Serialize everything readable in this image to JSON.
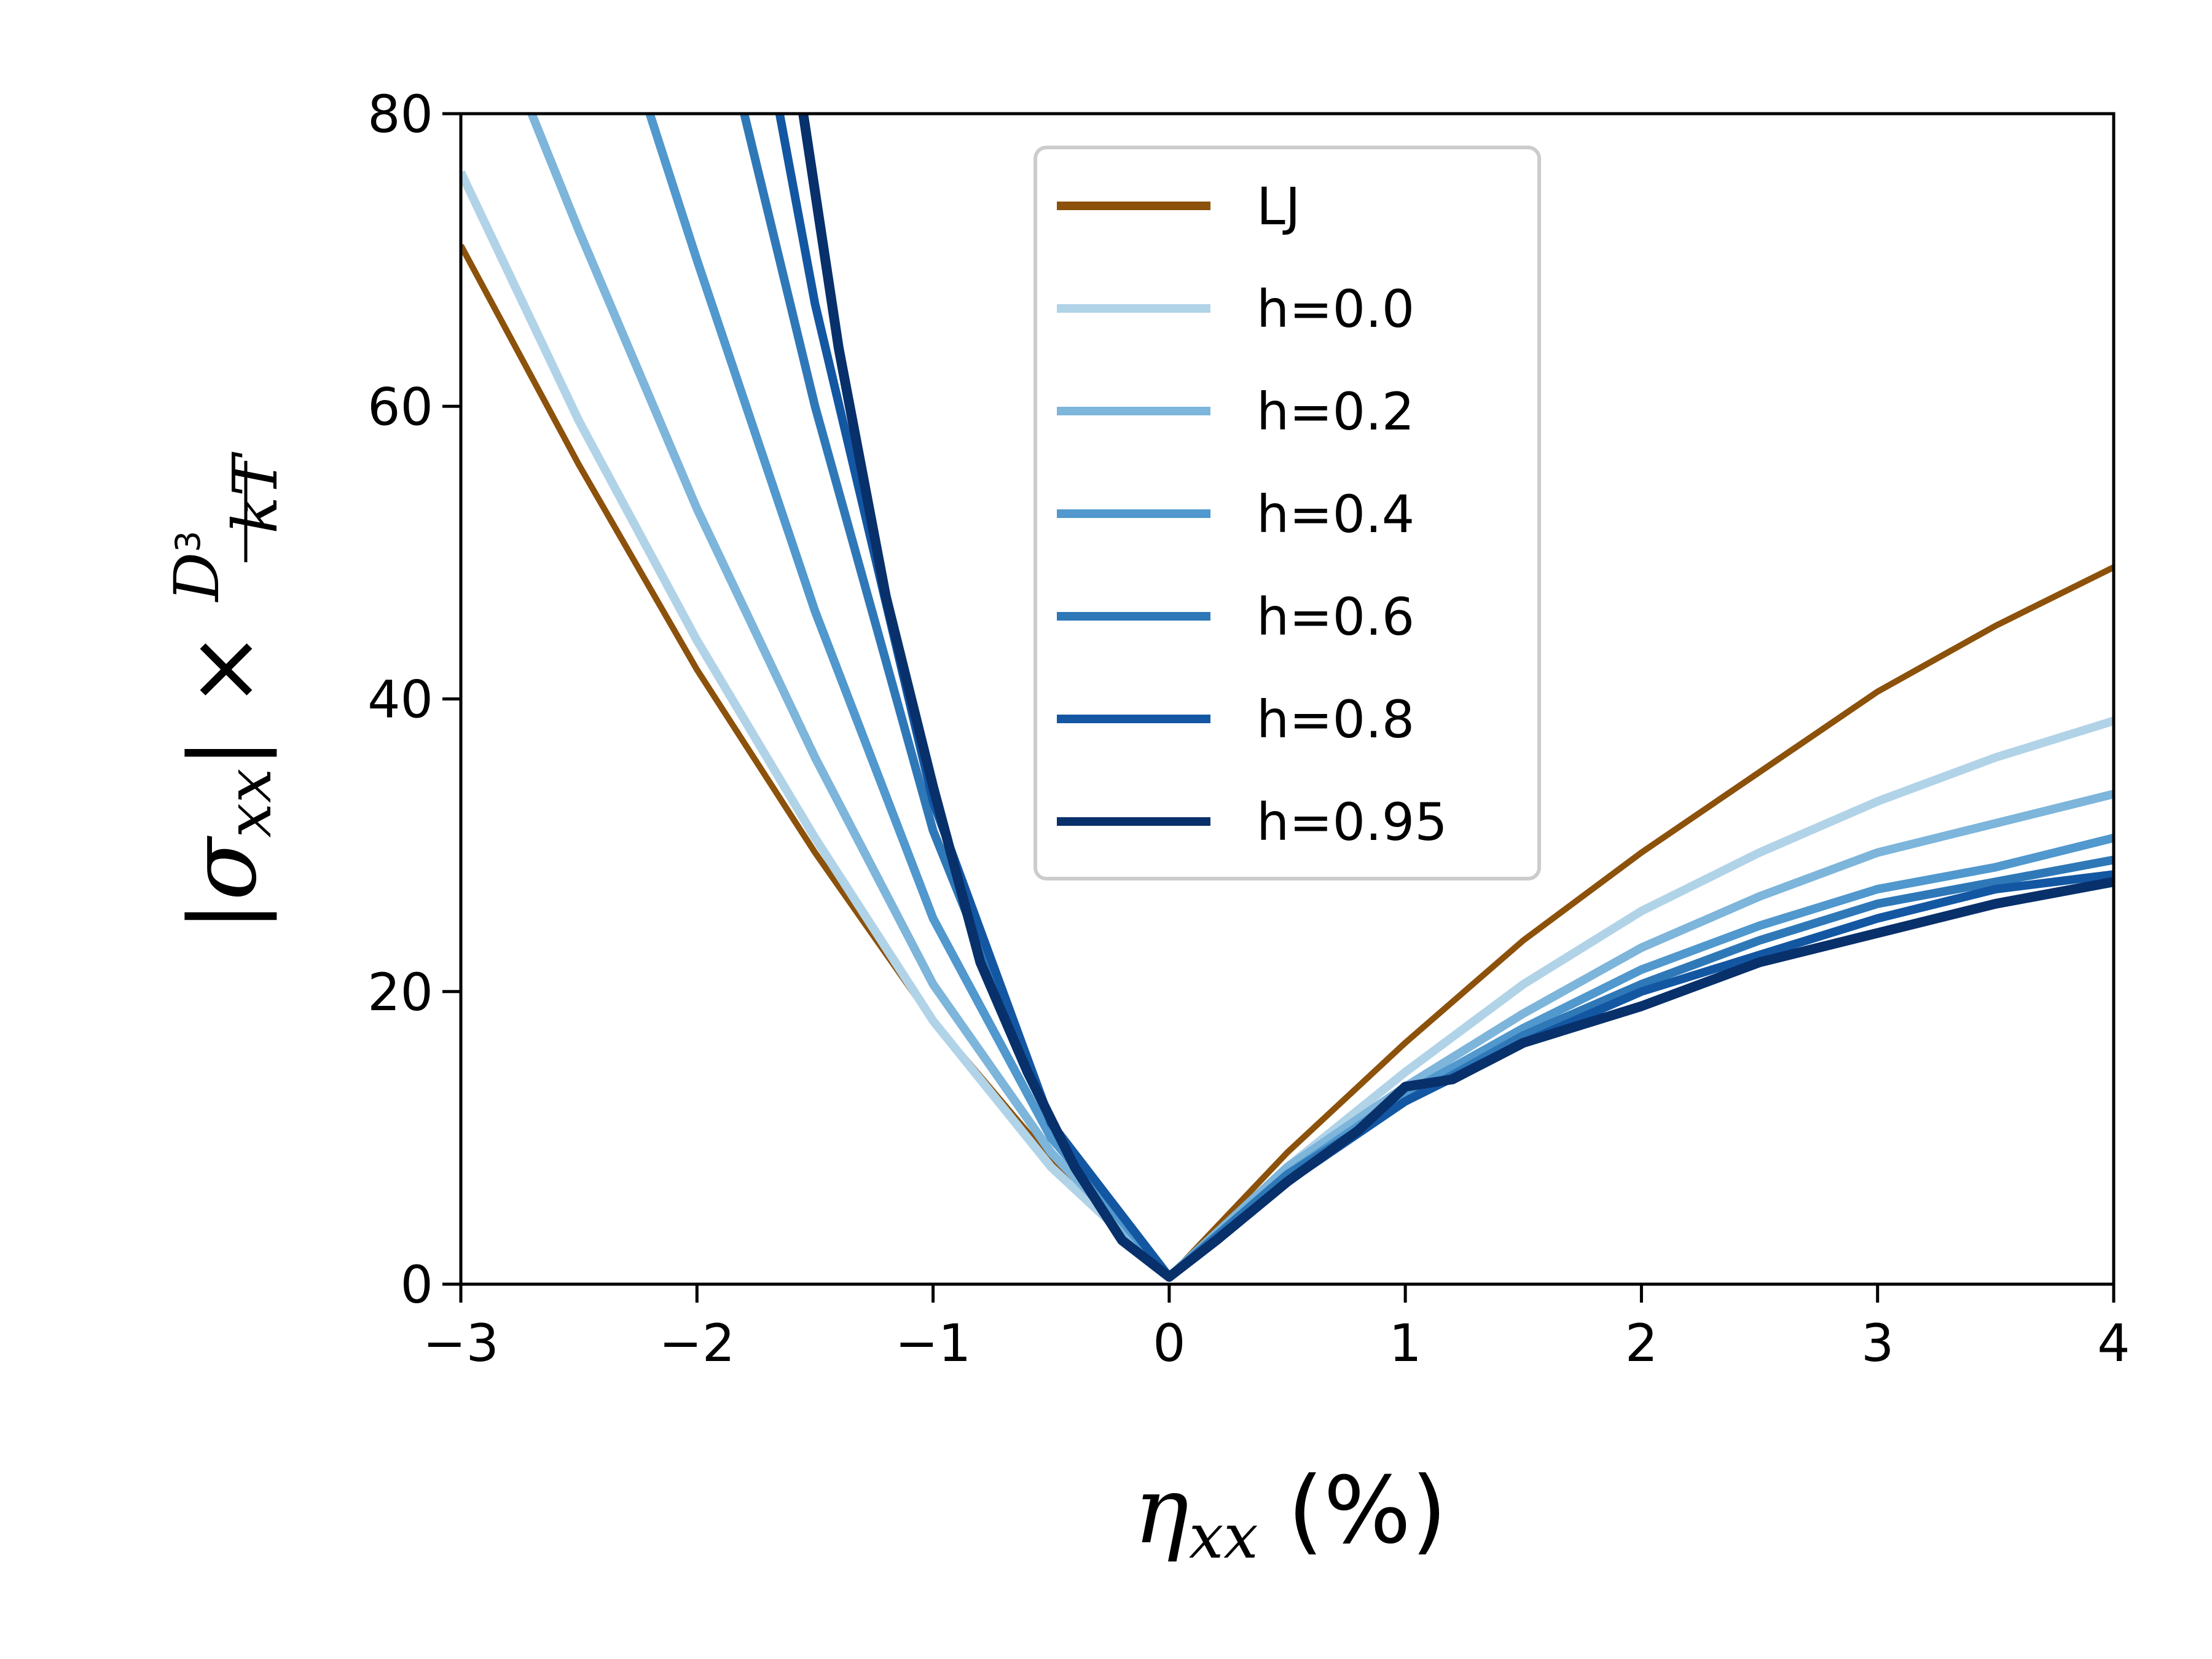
{
  "chart_data": {
    "type": "line",
    "xlabel": "η_xx (%)",
    "ylabel": "|σ_xx| × D³/kT",
    "xlim": [
      -3,
      4
    ],
    "ylim": [
      0,
      80
    ],
    "xticks": [
      "−3",
      "−2",
      "−1",
      "0",
      "1",
      "2",
      "3",
      "4"
    ],
    "yticks": [
      "0",
      "20",
      "40",
      "60",
      "80"
    ],
    "legend_position": "top-center",
    "grid": false,
    "series": [
      {
        "name": "LJ",
        "color": "#8c510a",
        "x": [
          -3,
          -2.5,
          -2,
          -1.5,
          -1,
          -0.5,
          0,
          0.5,
          1,
          1.5,
          2,
          2.5,
          3,
          3.5,
          4
        ],
        "y": [
          71,
          56,
          42,
          29.5,
          18,
          8.5,
          0.5,
          9,
          16.5,
          23.5,
          29.5,
          35,
          40.5,
          45,
          49
        ]
      },
      {
        "name": "h=0.0",
        "color": "#b1d3e8",
        "x": [
          -3,
          -2.5,
          -2,
          -1.5,
          -1,
          -0.5,
          0,
          0.5,
          1,
          1.5,
          2,
          2.5,
          3,
          3.5,
          4
        ],
        "y": [
          76,
          59,
          44,
          30.5,
          18,
          8,
          0.5,
          8,
          14.5,
          20.5,
          25.5,
          29.5,
          33,
          36,
          38.5
        ]
      },
      {
        "name": "h=0.2",
        "color": "#7db5db",
        "x": [
          -2.7,
          -2.5,
          -2,
          -1.5,
          -1,
          -0.5,
          0,
          0.5,
          1,
          1.5,
          2,
          2.5,
          3,
          3.5,
          4
        ],
        "y": [
          80,
          72,
          53,
          36,
          20.5,
          9,
          0.5,
          8,
          13.5,
          18.5,
          23,
          26.5,
          29.5,
          31.5,
          33.5
        ]
      },
      {
        "name": "h=0.4",
        "color": "#5098cd",
        "x": [
          -2.2,
          -2,
          -1.5,
          -1,
          -0.5,
          0,
          0.5,
          1,
          1.5,
          2,
          2.5,
          3,
          3.5,
          4
        ],
        "y": [
          80,
          70,
          46,
          25,
          10,
          0.5,
          7.5,
          13,
          17.5,
          21.5,
          24.5,
          27,
          28.5,
          30.5
        ]
      },
      {
        "name": "h=0.6",
        "color": "#2f78b8",
        "x": [
          -1.8,
          -1.5,
          -1,
          -0.5,
          0,
          0.5,
          1,
          1.5,
          2,
          2.5,
          3,
          3.5,
          4
        ],
        "y": [
          80,
          60,
          31,
          11,
          0.5,
          7.5,
          12.5,
          17,
          20.5,
          23.5,
          26,
          27.5,
          29
        ]
      },
      {
        "name": "h=0.8",
        "color": "#1357a3",
        "x": [
          -1.65,
          -1.5,
          -1,
          -0.5,
          0,
          0.5,
          1,
          1.5,
          2,
          2.5,
          3,
          3.5,
          4
        ],
        "y": [
          80,
          67,
          33,
          11,
          0.5,
          7,
          12.5,
          16.5,
          20,
          22.5,
          25,
          27,
          28
        ]
      },
      {
        "name": "h=0.95",
        "color": "#08306b",
        "x": [
          -1.55,
          -1.4,
          -1.2,
          -1,
          -0.8,
          -0.6,
          -0.4,
          -0.2,
          0,
          0.2,
          0.5,
          0.8,
          1,
          1.2,
          1.5,
          2,
          2.5,
          3,
          3.5,
          4
        ],
        "y": [
          80,
          64,
          47,
          34,
          22,
          14.5,
          8,
          3,
          0.5,
          3,
          7,
          10.5,
          13.5,
          14,
          16.5,
          19,
          22,
          24,
          26,
          27.5
        ]
      }
    ]
  }
}
